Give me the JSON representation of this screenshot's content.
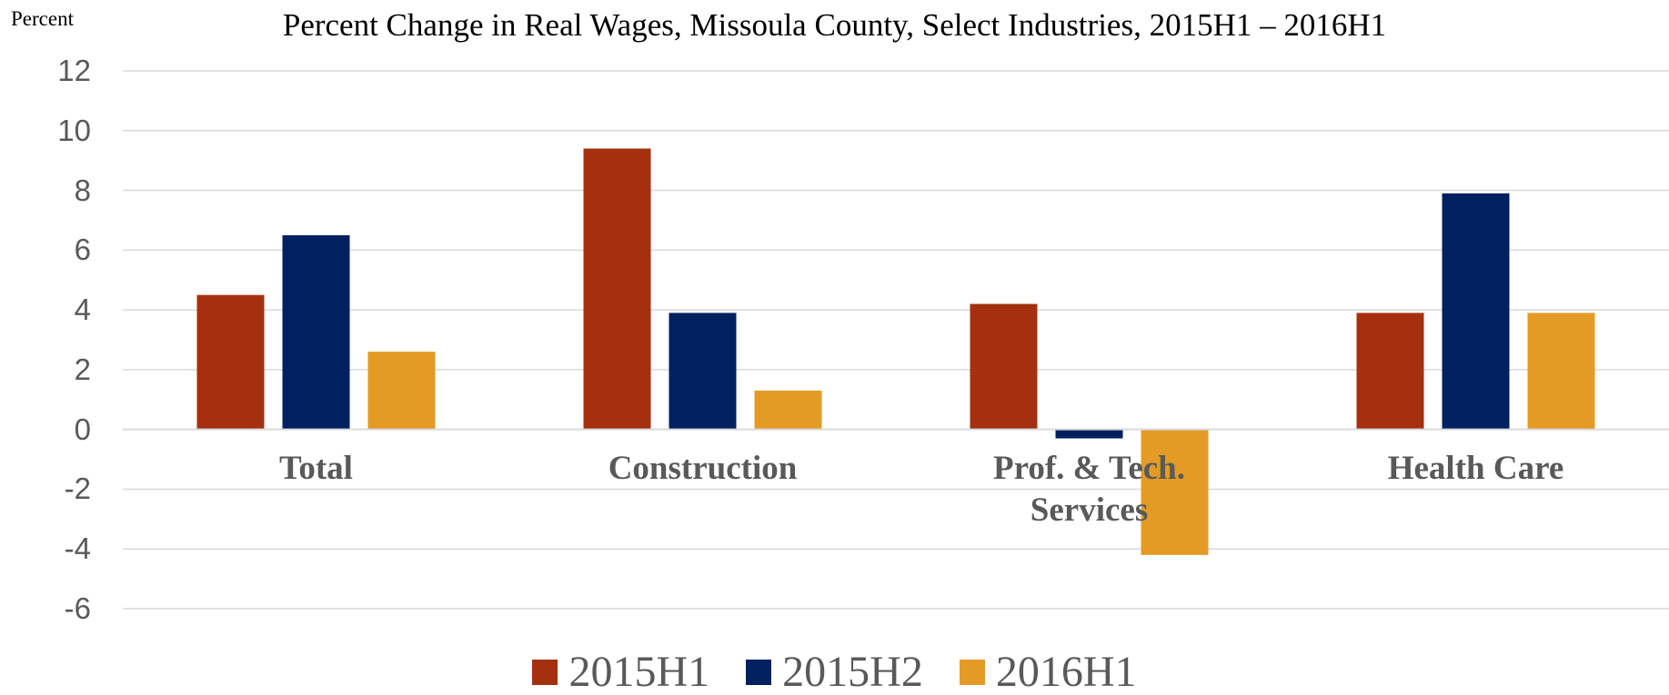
{
  "chart_data": {
    "type": "bar",
    "title": "Percent Change in Real Wages, Missoula County, Select Industries, 2015H1 – 2016H1",
    "y_label": "Percent",
    "categories": [
      "Total",
      "Construction",
      "Prof. & Tech. Services",
      "Health Care"
    ],
    "series": [
      {
        "name": "2015H1",
        "color": "#a5300f",
        "values": [
          4.5,
          9.4,
          4.2,
          3.9
        ]
      },
      {
        "name": "2015H2",
        "color": "#002060",
        "values": [
          6.5,
          3.9,
          -0.3,
          7.9
        ]
      },
      {
        "name": "2016H1",
        "color": "#e39b26",
        "values": [
          2.6,
          1.3,
          -4.2,
          3.9
        ]
      }
    ],
    "ylim": [
      -6,
      12
    ],
    "yticks": [
      -6,
      -4,
      -2,
      0,
      2,
      4,
      6,
      8,
      10,
      12
    ],
    "grid": true,
    "legend": "bottom"
  }
}
